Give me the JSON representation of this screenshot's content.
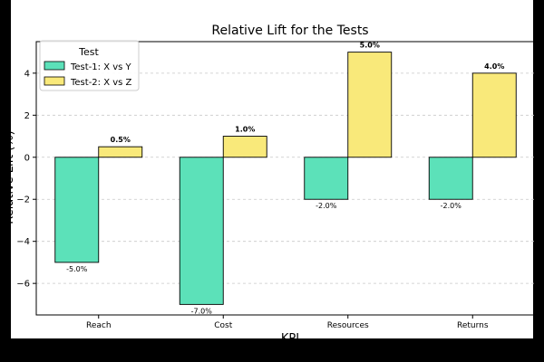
{
  "chart_data": {
    "type": "bar",
    "title": "Relative Lift  for the Tests",
    "xlabel": "KPI",
    "ylabel": "Relative Lift (%)",
    "categories": [
      "Reach",
      "Cost",
      "Resources",
      "Returns"
    ],
    "series": [
      {
        "name": "Test-1: X vs Y",
        "values": [
          -5.0,
          -7.0,
          -2.0,
          -2.0
        ],
        "color": "#5ce1b9"
      },
      {
        "name": "Test-2: X vs Z",
        "values": [
          0.5,
          1.0,
          5.0,
          4.0
        ],
        "color": "#f9e97a"
      }
    ],
    "data_labels": {
      "series_0": [
        "-5.0%",
        "-7.0%",
        "-2.0%",
        "-2.0%"
      ],
      "series_1": [
        "0.5%",
        "1.0%",
        "5.0%",
        "4.0%"
      ]
    },
    "ylim": [
      -7.5,
      5.5
    ],
    "yticks": [
      -6,
      -4,
      -2,
      0,
      2,
      4
    ],
    "ytick_labels": [
      "−6",
      "−4",
      "−2",
      "0",
      "2",
      "4"
    ],
    "grid": "horizontal dashed",
    "legend": {
      "title": "Test",
      "placement": "top-left"
    },
    "colors": {
      "background": "#ffffff",
      "grid": "#c8c8c8",
      "edge": "#000000",
      "frame": "#000000"
    }
  }
}
